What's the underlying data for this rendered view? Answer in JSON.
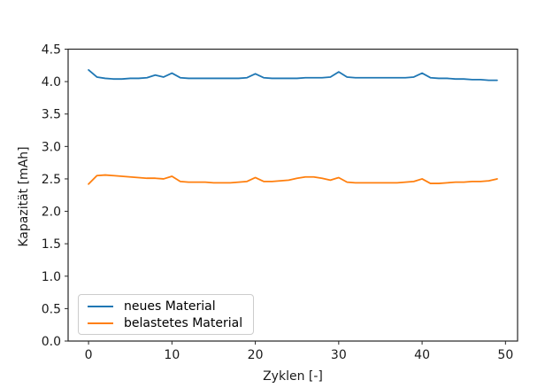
{
  "chart_data": {
    "type": "line",
    "title": "",
    "xlabel": "Zyklen [-]",
    "ylabel": "Kapazität [mAh]",
    "xlim": [
      -2.45,
      51.45
    ],
    "ylim": [
      0,
      4.5
    ],
    "xticks": [
      0,
      10,
      20,
      30,
      40,
      50
    ],
    "yticks": [
      0.0,
      0.5,
      1.0,
      1.5,
      2.0,
      2.5,
      3.0,
      3.5,
      4.0,
      4.5
    ],
    "grid": false,
    "legend_position": "lower left",
    "x": [
      0,
      1,
      2,
      3,
      4,
      5,
      6,
      7,
      8,
      9,
      10,
      11,
      12,
      13,
      14,
      15,
      16,
      17,
      18,
      19,
      20,
      21,
      22,
      23,
      24,
      25,
      26,
      27,
      28,
      29,
      30,
      31,
      32,
      33,
      34,
      35,
      36,
      37,
      38,
      39,
      40,
      41,
      42,
      43,
      44,
      45,
      46,
      47,
      48,
      49
    ],
    "series": [
      {
        "name": "neues Material",
        "color": "#1f77b4",
        "values": [
          4.18,
          4.07,
          4.05,
          4.04,
          4.04,
          4.05,
          4.05,
          4.06,
          4.1,
          4.07,
          4.13,
          4.06,
          4.05,
          4.05,
          4.05,
          4.05,
          4.05,
          4.05,
          4.05,
          4.06,
          4.12,
          4.06,
          4.05,
          4.05,
          4.05,
          4.05,
          4.06,
          4.06,
          4.06,
          4.07,
          4.15,
          4.07,
          4.06,
          4.06,
          4.06,
          4.06,
          4.06,
          4.06,
          4.06,
          4.07,
          4.13,
          4.06,
          4.05,
          4.05,
          4.04,
          4.04,
          4.03,
          4.03,
          4.02,
          4.02
        ]
      },
      {
        "name": "belastetes Material",
        "color": "#ff7f0e",
        "values": [
          2.42,
          2.55,
          2.56,
          2.55,
          2.54,
          2.53,
          2.52,
          2.51,
          2.51,
          2.5,
          2.54,
          2.46,
          2.45,
          2.45,
          2.45,
          2.44,
          2.44,
          2.44,
          2.45,
          2.46,
          2.52,
          2.46,
          2.46,
          2.47,
          2.48,
          2.51,
          2.53,
          2.53,
          2.51,
          2.48,
          2.52,
          2.45,
          2.44,
          2.44,
          2.44,
          2.44,
          2.44,
          2.44,
          2.45,
          2.46,
          2.5,
          2.43,
          2.43,
          2.44,
          2.45,
          2.45,
          2.46,
          2.46,
          2.47,
          2.5
        ]
      }
    ]
  }
}
